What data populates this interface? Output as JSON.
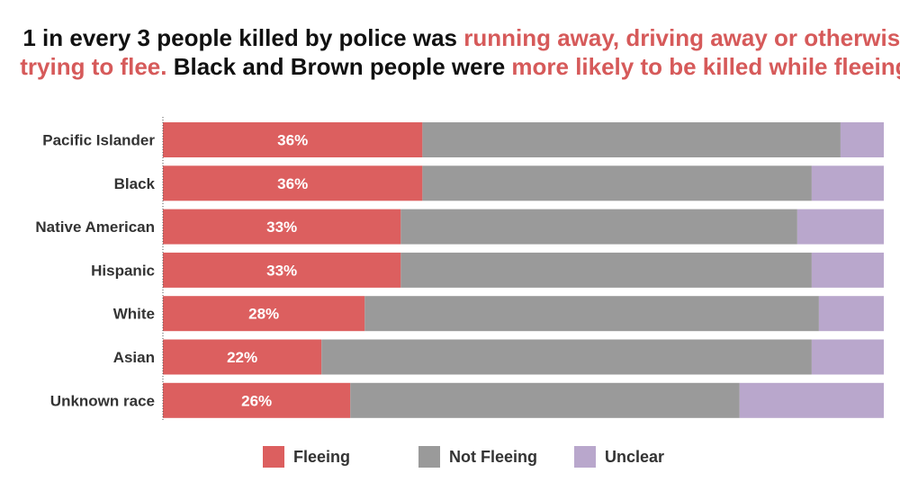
{
  "title": {
    "part1": "1 in every 3 people killed by police was ",
    "part2": "running away, driving away or otherwise trying to flee.",
    "part3": " Black and Brown people were ",
    "part4": "more likely to be killed while fleeing."
  },
  "colors": {
    "fleeing": "#dc5f5f",
    "not_fleeing": "#9a9a9a",
    "unclear": "#b9a7cc",
    "highlight_text": "#d65a5a"
  },
  "chart_data": {
    "type": "bar",
    "orientation": "horizontal",
    "stacked": true,
    "normalized": true,
    "categories": [
      "Pacific Islander",
      "Black",
      "Native American",
      "Hispanic",
      "White",
      "Asian",
      "Unknown race"
    ],
    "series": [
      {
        "name": "Fleeing",
        "values": [
          36,
          36,
          33,
          33,
          28,
          22,
          26
        ],
        "labels": [
          "36%",
          "36%",
          "33%",
          "33%",
          "28%",
          "22%",
          "26%"
        ]
      },
      {
        "name": "Not Fleeing",
        "values": [
          58,
          54,
          55,
          57,
          63,
          68,
          54
        ]
      },
      {
        "name": "Unclear",
        "values": [
          6,
          10,
          12,
          10,
          9,
          10,
          20
        ]
      }
    ],
    "xlim": [
      0,
      100
    ],
    "grid": false,
    "legend_position": "bottom"
  }
}
